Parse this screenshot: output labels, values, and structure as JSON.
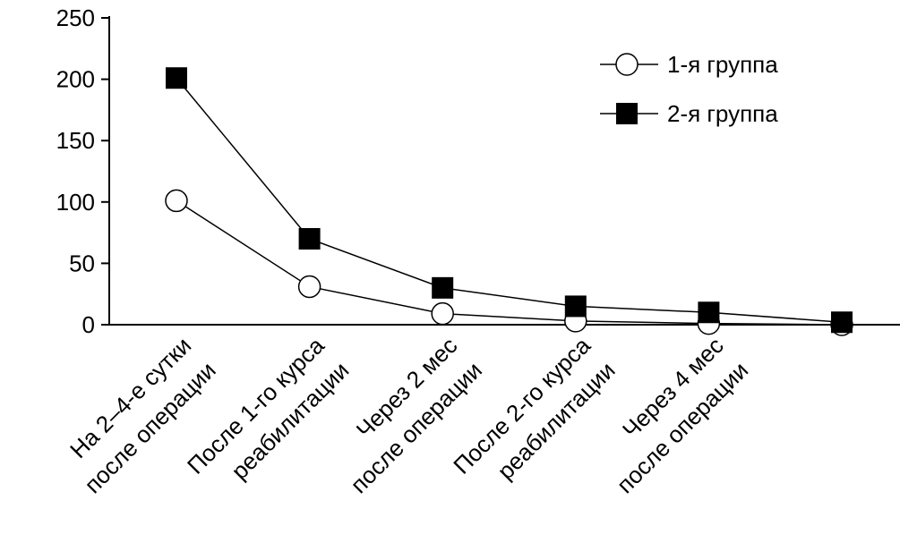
{
  "chart_data": {
    "type": "line",
    "categories": [
      "На 2–4-е сутки\nпосле операции",
      "После 1-го курса\nреабилитации",
      "Через 2 мес\nпосле операции",
      "После 2-го курса\nреабилитации",
      "Через 4 мес\nпосле операции",
      null
    ],
    "series": [
      {
        "name": "1-я группа",
        "color": "#000000",
        "marker": "circle",
        "values": [
          101,
          31,
          9,
          3,
          1,
          0
        ]
      },
      {
        "name": "2-я группа",
        "color": "#000000",
        "marker": "square",
        "values": [
          201,
          70,
          30,
          15,
          10,
          2
        ]
      }
    ],
    "ylim": [
      0,
      250
    ],
    "yticks": [
      0,
      50,
      100,
      150,
      200,
      250
    ],
    "grid": false,
    "legend": "upper right"
  }
}
